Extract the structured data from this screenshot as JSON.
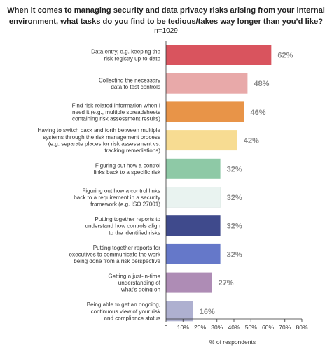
{
  "chart_data": {
    "type": "bar",
    "orientation": "horizontal",
    "title": "When it comes to managing security and data privacy risks arising from your internal environment, what tasks do you find to be tedious/takes way longer than you’d like?",
    "subtitle": "n=1029",
    "xlabel": "% of respondents",
    "ylabel": "",
    "xlim": [
      0,
      80
    ],
    "x_ticks": [
      "0",
      "10%",
      "20%",
      "30%",
      "40%",
      "50%",
      "60%",
      "70%",
      "80%"
    ],
    "grid": false,
    "categories": [
      [
        "Data entry, e.g. keeping the",
        "risk registry up-to-date"
      ],
      [
        "Collecting the necessary",
        "data to test controls"
      ],
      [
        "Find risk-related information when I",
        "need it (e.g., multiple spreadsheets",
        "containing risk assessment results)"
      ],
      [
        "Having to switch back and forth between multiple",
        "systems through the risk management process",
        "(e.g. separate places for risk assessment vs.",
        "tracking remediations)"
      ],
      [
        "Figuring out how a control",
        "links back to a specific risk"
      ],
      [
        "Figuring out how a control links",
        "back to a requirement in a security",
        "framework (e.g. ISO 27001)"
      ],
      [
        "Putting together reports to",
        "understand how controls align",
        "to the identified risks"
      ],
      [
        "Putting together reports for",
        "executives to communicate the work",
        "being done from a risk perspective"
      ],
      [
        "Getting a just-in-time",
        "understanding of",
        "what’s going on"
      ],
      [
        "Being able to get an ongoing,",
        "continuous view of your risk",
        "and compliance status"
      ]
    ],
    "values": [
      62,
      48,
      46,
      42,
      32,
      32,
      32,
      32,
      27,
      16
    ],
    "value_labels": [
      "62%",
      "48%",
      "46%",
      "42%",
      "32%",
      "32%",
      "32%",
      "32%",
      "27%",
      "16%"
    ],
    "colors": [
      "#d9545e",
      "#e8a9a9",
      "#e89448",
      "#f7dc92",
      "#8ec9a6",
      "#e9f3f0",
      "#3f4a8c",
      "#6578c9",
      "#ae8cb5",
      "#aeb0d0"
    ]
  }
}
